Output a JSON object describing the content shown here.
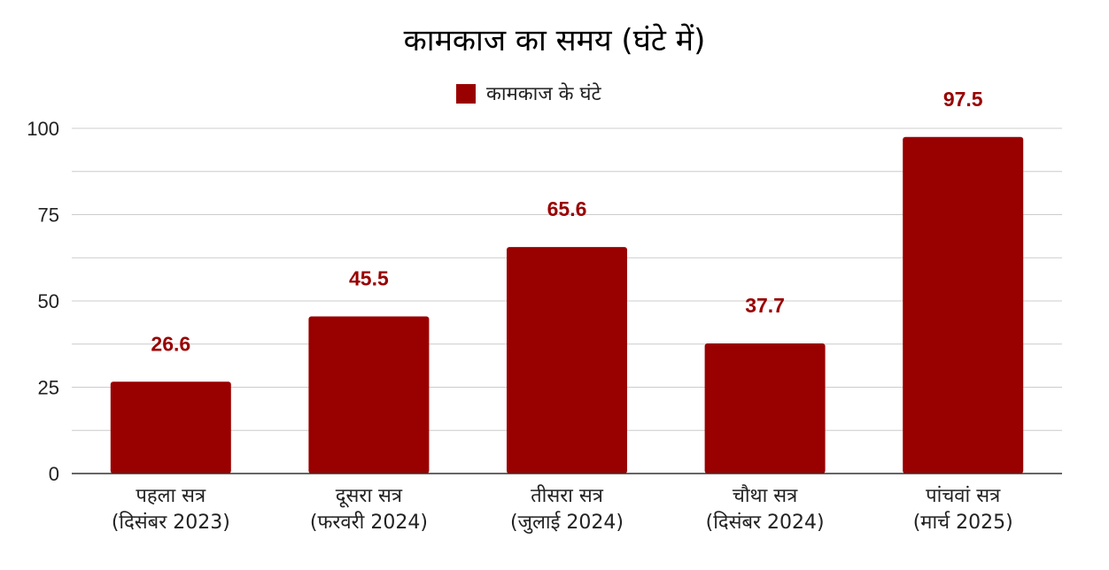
{
  "chart_data": {
    "type": "bar",
    "title": "कामकाज का समय (घंटे में)",
    "categories": [
      [
        "पहला सत्र",
        "(दिसंबर 2023)"
      ],
      [
        "दूसरा सत्र",
        "(फरवरी 2024)"
      ],
      [
        "तीसरा सत्र",
        "(जुलाई 2024)"
      ],
      [
        "चौथा सत्र",
        "(दिसंबर 2024)"
      ],
      [
        "पांचवां सत्र",
        "(मार्च 2025)"
      ]
    ],
    "series": [
      {
        "name": "कामकाज के घंटे",
        "values": [
          26.6,
          45.5,
          65.6,
          37.7,
          97.5
        ],
        "labels": [
          "26.6",
          "45.5",
          "65.6",
          "37.7",
          "97.5"
        ],
        "color": "#990000"
      }
    ],
    "y_ticks": [
      "0",
      "25",
      "50",
      "75",
      "100"
    ],
    "ylim": [
      0,
      100
    ],
    "grid": true,
    "legend_position": "top-center",
    "data_label_color": "#990000",
    "gridline_color": "#cccccc",
    "axis_color": "#333333"
  }
}
